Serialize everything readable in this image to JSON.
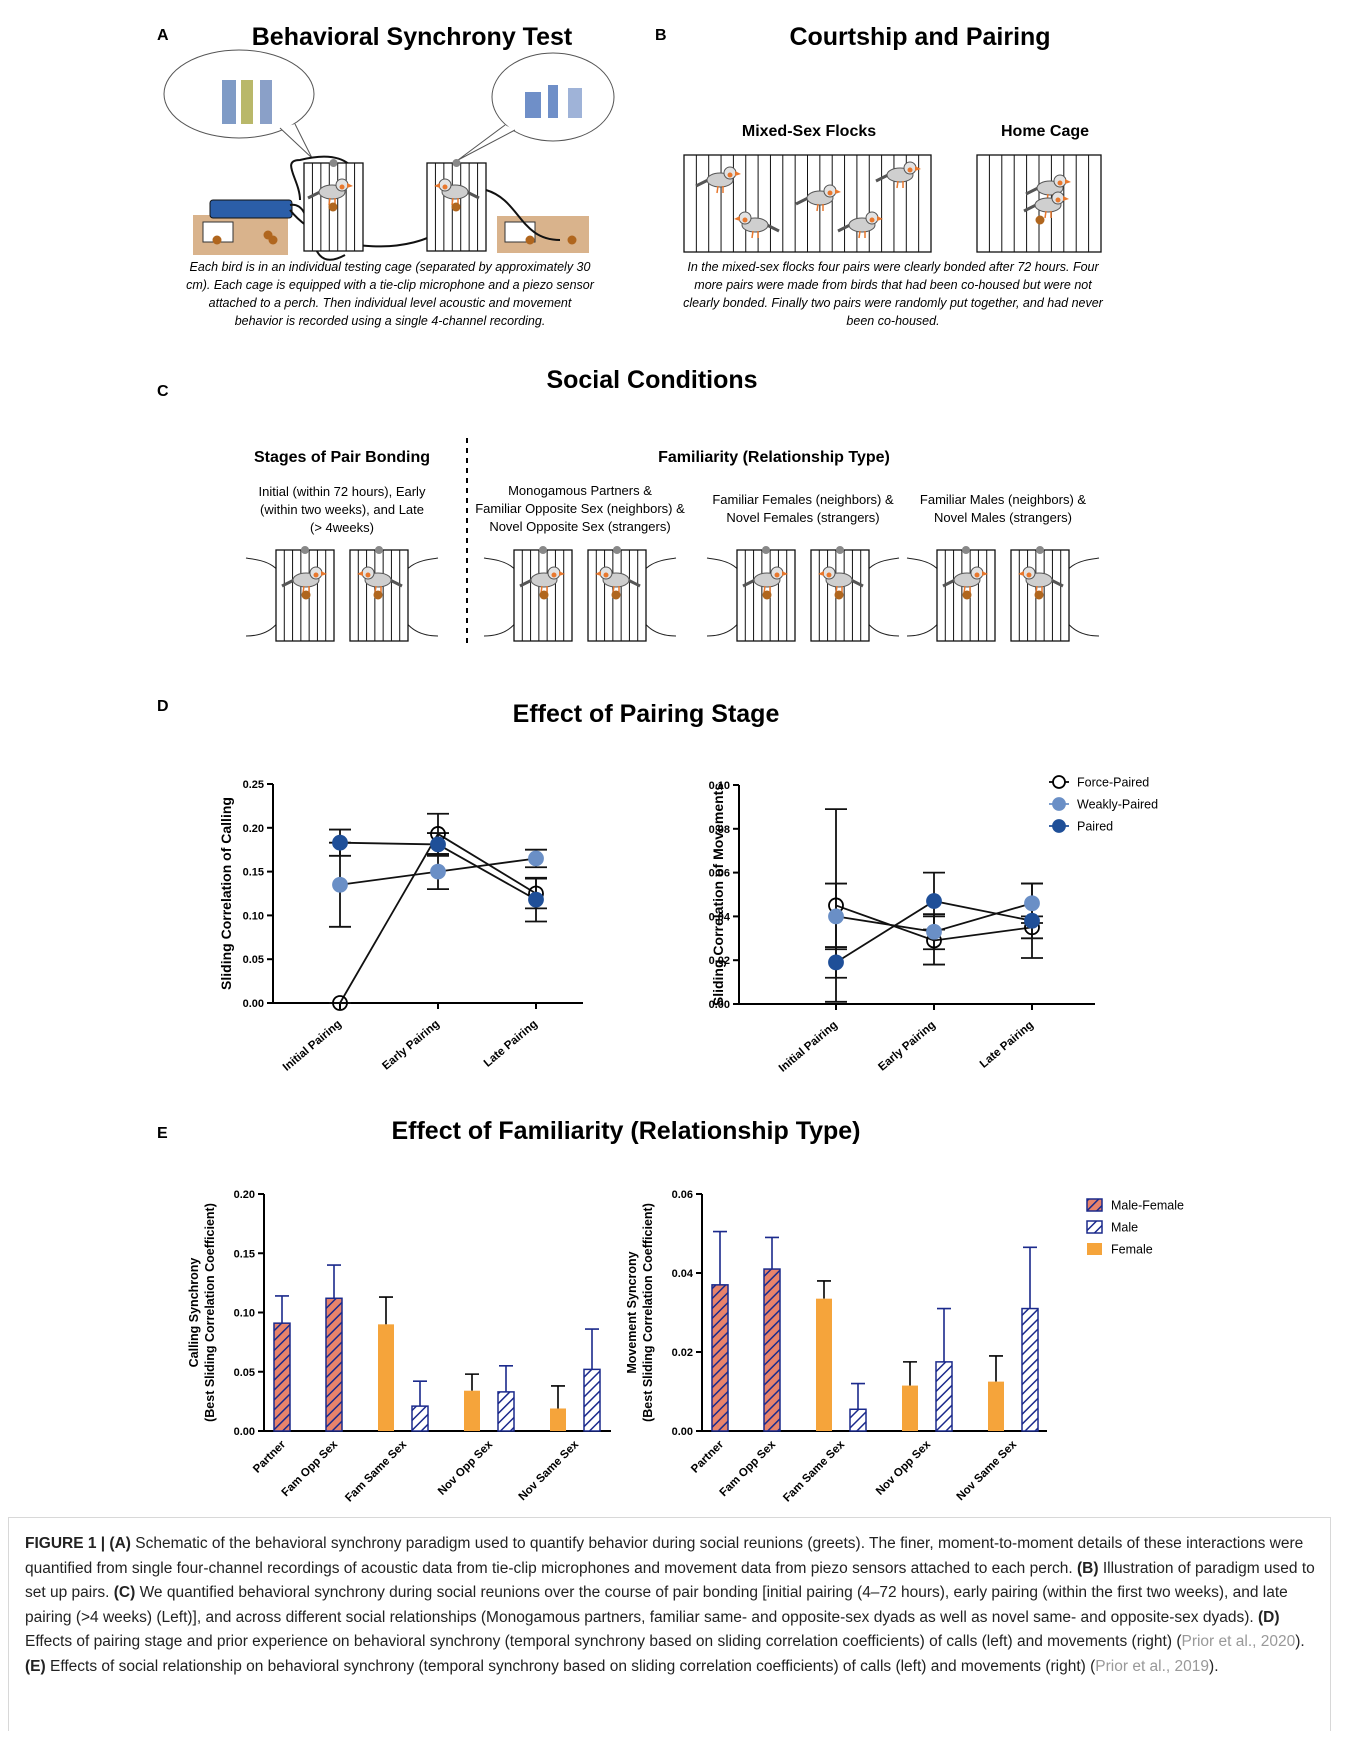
{
  "panels": [
    {
      "label": "A",
      "title": "Behavioral Synchrony Test",
      "caption": [
        "Each bird is in an individual testing cage (separated by approximately 30",
        "cm). Each cage is equipped with a tie-clip microphone and a piezo sensor",
        "attached to a perch. Then individual level acoustic and movement",
        "behavior is recorded using a single 4-channel recording."
      ]
    },
    {
      "label": "B",
      "title": "Courtship and Pairing",
      "subtitles": [
        "Mixed-Sex Flocks",
        "Home Cage"
      ],
      "caption": [
        "In the mixed-sex flocks four pairs were clearly bonded after 72 hours. Four",
        "more pairs were made from birds that had been co-housed but were not",
        "clearly bonded. Finally two pairs were randomly put together, and had never",
        "been co-housed."
      ]
    },
    {
      "label": "C",
      "title": "Social Conditions",
      "left": {
        "heading": "Stages of Pair Bonding",
        "lines": [
          "Initial (within 72 hours), Early",
          "(within two weeks), and Late",
          "(> 4weeks)"
        ]
      },
      "right": {
        "heading": "Familiarity (Relationship Type)",
        "groups": [
          [
            "Monogamous Partners &",
            "Familiar Opposite Sex (neighbors) &",
            "Novel Opposite Sex (strangers)"
          ],
          [
            "Familiar Females (neighbors) &",
            "Novel Females (strangers)"
          ],
          [
            "Familiar Males (neighbors) &",
            "Novel Males (strangers)"
          ]
        ]
      }
    },
    {
      "label": "D",
      "title": "Effect of Pairing Stage"
    },
    {
      "label": "E",
      "title": "Effect of Familiarity (Relationship Type)"
    }
  ],
  "chart_data": [
    {
      "type": "line",
      "ylabel": "Sliding Correlation of Calling",
      "categories": [
        "Initial Pairing",
        "Early Pairing",
        "Late Pairing"
      ],
      "ylim": [
        0,
        0.25
      ],
      "yticks": [
        {
          "value": 0,
          "label": "0.00"
        },
        0.05,
        {
          "value": 0.1,
          "label": "0.10"
        },
        0.15,
        {
          "value": 0.2,
          "label": "0.20"
        },
        0.25
      ],
      "series": [
        {
          "color": "#000000",
          "marker": "open",
          "values": [
            0,
            0.193,
            0.125
          ],
          "errors": [
            0,
            0.023,
            0.017
          ]
        },
        {
          "color": "#6a8fc6",
          "marker": "filled",
          "values": [
            0.135,
            0.15,
            0.165
          ],
          "errors": [
            0.048,
            0.02,
            0.01
          ]
        },
        {
          "color": "#1f4f98",
          "marker": "filled",
          "values": [
            0.183,
            0.181,
            0.118
          ],
          "errors": [
            0.015,
            0.013,
            0.025
          ]
        }
      ]
    },
    {
      "type": "line",
      "ylabel": "Sliding Correlation of Movements",
      "categories": [
        "Initial Pairing",
        "Early Pairing",
        "Late Pairing"
      ],
      "ylim": [
        0,
        0.1
      ],
      "yticks": [
        {
          "value": 0,
          "label": "0.00"
        },
        0.02,
        0.04,
        0.06,
        0.08,
        {
          "value": 0.1,
          "label": "0.10"
        }
      ],
      "series": [
        {
          "name": "Force-Paired",
          "color": "#000000",
          "marker": "open",
          "values": [
            0.045,
            0.029,
            0.035
          ],
          "errors": [
            0.044,
            0.011,
            0.005
          ]
        },
        {
          "name": "Weakly-Paired",
          "color": "#6a8fc6",
          "marker": "filled",
          "values": [
            0.04,
            0.033,
            0.046
          ],
          "errors": [
            0.015,
            0.008,
            0.009
          ]
        },
        {
          "name": "Paired",
          "color": "#1f4f98",
          "marker": "filled",
          "values": [
            0.019,
            0.047,
            0.038
          ],
          "errors": [
            0.007,
            0.013,
            0.017
          ]
        }
      ],
      "legend": "upper right"
    },
    {
      "type": "bar",
      "ylabel": [
        "Calling Synchrony",
        "(Best Sliding Correlation Coefficient)"
      ],
      "categories": [
        "Partner",
        "Fam Opp Sex",
        "Fam Same Sex",
        "Nov Opp Sex",
        "Nov Same Sex"
      ],
      "ylim": [
        0,
        0.2
      ],
      "yticks": [
        {
          "value": 0,
          "label": "0.00"
        },
        0.05,
        {
          "value": 0.1,
          "label": "0.10"
        },
        0.15,
        {
          "value": 0.2,
          "label": "0.20"
        }
      ],
      "series": [
        {
          "color": "#e8836b",
          "hatch": "#1b2a8c",
          "error_color": "#1b2a8c",
          "values": [
            0.091,
            0.112,
            null,
            null,
            null
          ],
          "errors": [
            0.023,
            0.028,
            null,
            null,
            null
          ]
        },
        {
          "color": "#ffffff",
          "hatch": "#1b2a8c",
          "error_color": "#1b2a8c",
          "values": [
            null,
            null,
            0.021,
            0.033,
            0.052
          ],
          "errors": [
            null,
            null,
            0.021,
            0.022,
            0.034
          ]
        },
        {
          "color": "#f5a43b",
          "error_color": "#000000",
          "values": [
            null,
            null,
            0.09,
            0.034,
            0.019
          ],
          "errors": [
            null,
            null,
            0.023,
            0.014,
            0.019
          ]
        }
      ]
    },
    {
      "type": "bar",
      "ylabel": [
        "Movement Syncrony",
        "(Best Sliding Correlation Coefficient)"
      ],
      "categories": [
        "Partner",
        "Fam Opp Sex",
        "Fam Same Sex",
        "Nov Opp Sex",
        "Nov Same Sex"
      ],
      "ylim": [
        0,
        0.06
      ],
      "yticks": [
        {
          "value": 0,
          "label": "0.00"
        },
        0.02,
        0.04,
        0.06
      ],
      "series": [
        {
          "name": "Male-Female",
          "color": "#e8836b",
          "hatch": "#1b2a8c",
          "error_color": "#1b2a8c",
          "values": [
            0.037,
            0.041,
            null,
            null,
            null
          ],
          "errors": [
            0.0135,
            0.008,
            null,
            null,
            null
          ]
        },
        {
          "name": "Male",
          "color": "#ffffff",
          "hatch": "#1b2a8c",
          "error_color": "#1b2a8c",
          "values": [
            null,
            null,
            0.0055,
            0.0175,
            0.031
          ],
          "errors": [
            null,
            null,
            0.0065,
            0.0135,
            0.0155
          ]
        },
        {
          "name": "Female",
          "color": "#f5a43b",
          "error_color": "#000000",
          "values": [
            null,
            null,
            0.0335,
            0.0115,
            0.0125
          ],
          "errors": [
            null,
            null,
            0.0045,
            0.006,
            0.0065
          ]
        }
      ],
      "legend": "upper right"
    }
  ],
  "caption": [
    {
      "text": "FIGURE 1 | (A)",
      "style": "bold"
    },
    {
      "text": " Schematic of the behavioral synchrony paradigm used to quantify behavior during social reunions (greets). The finer, moment-to-moment details of these interactions were quantified from single four-channel recordings of acoustic data from tie-clip microphones and movement data from piezo sensors attached to each perch. ",
      "style": "plain"
    },
    {
      "text": "(B)",
      "style": "bold"
    },
    {
      "text": " Illustration of paradigm used to set up pairs. ",
      "style": "plain"
    },
    {
      "text": "(C)",
      "style": "bold"
    },
    {
      "text": " We quantified behavioral synchrony during social reunions over the course of pair bonding [initial pairing (4–72 hours), early pairing (within the first two weeks), and late pairing (>4 weeks) (Left)], and across different social relationships (Monogamous partners, familiar same- and opposite-sex dyads as well as novel same- and opposite-sex dyads). ",
      "style": "plain"
    },
    {
      "text": "(D)",
      "style": "bold"
    },
    {
      "text": " Effects of pairing stage and prior experience on behavioral synchrony (temporal synchrony based on sliding correlation coefficients) of calls (left) and movements (right) (",
      "style": "plain"
    },
    {
      "text": "Prior et al., 2020",
      "style": "link"
    },
    {
      "text": "). ",
      "style": "plain"
    },
    {
      "text": "(E)",
      "style": "bold"
    },
    {
      "text": " Effects of social relationship on behavioral synchrony (temporal synchrony based on sliding correlation coefficients) of calls (left) and movements (right) (",
      "style": "plain"
    },
    {
      "text": "Prior et al., 2019",
      "style": "link"
    },
    {
      "text": ").",
      "style": "plain"
    }
  ]
}
